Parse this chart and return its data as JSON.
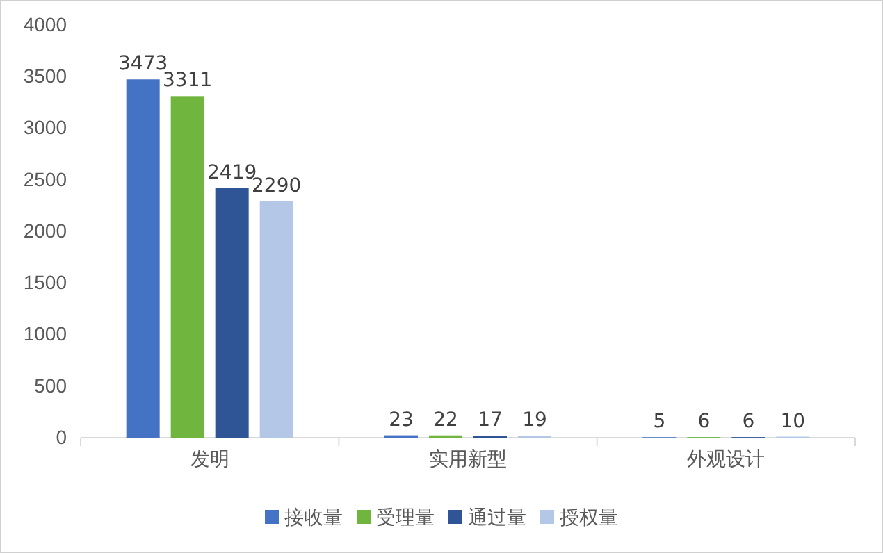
{
  "chart_data": {
    "type": "bar",
    "categories": [
      "发明",
      "实用新型",
      "外观设计"
    ],
    "series": [
      {
        "name": "接收量",
        "color": "#4472c4",
        "values": [
          3473,
          23,
          5
        ]
      },
      {
        "name": "受理量",
        "color": "#70b63e",
        "values": [
          3311,
          22,
          6
        ]
      },
      {
        "name": "通过量",
        "color": "#2f5597",
        "values": [
          2419,
          17,
          6
        ]
      },
      {
        "name": "授权量",
        "color": "#b4c7e7",
        "values": [
          2290,
          19,
          10
        ]
      }
    ],
    "ylim": [
      0,
      4000
    ],
    "yticks": [
      0,
      500,
      1000,
      1500,
      2000,
      2500,
      3000,
      3500,
      4000
    ],
    "grid": false,
    "legend": "bottom",
    "data_labels": true
  }
}
